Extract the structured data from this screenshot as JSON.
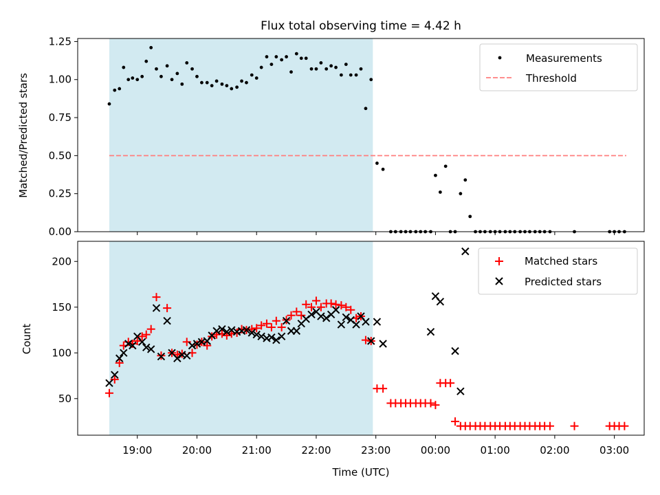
{
  "title": "Flux total observing time = 4.42 h",
  "shade_color": "#add8e6",
  "chart_data": [
    {
      "type": "scatter",
      "ylabel": "Matched/Predicted stars",
      "xlabel": "",
      "ylim": [
        0,
        1.27
      ],
      "yticks": [
        "0.00",
        "0.25",
        "0.50",
        "0.75",
        "1.00",
        "1.25"
      ],
      "ytick_values": [
        0,
        0.25,
        0.5,
        0.75,
        1.0,
        1.25
      ],
      "x_unit": "hours after 00:00 UTC of first day",
      "shaded_span": [
        18.53,
        22.95
      ],
      "legend_placement": "top-right",
      "legend": [
        {
          "label": "Measurements",
          "marker": "dot",
          "color": "#000000"
        },
        {
          "label": "Threshold",
          "marker": "dashed-line",
          "color": "#ff7f7f"
        }
      ],
      "threshold": {
        "value": 0.5,
        "x_range": [
          18.53,
          27.2
        ],
        "color": "#ff7f7f"
      },
      "series": [
        {
          "name": "Measurements",
          "color": "#000000",
          "x": [
            18.53,
            18.62,
            18.7,
            18.77,
            18.85,
            18.92,
            19.0,
            19.08,
            19.15,
            19.23,
            19.32,
            19.4,
            19.5,
            19.58,
            19.67,
            19.75,
            19.83,
            19.92,
            20.0,
            20.08,
            20.17,
            20.25,
            20.33,
            20.42,
            20.5,
            20.58,
            20.67,
            20.75,
            20.83,
            20.92,
            21.0,
            21.08,
            21.17,
            21.25,
            21.33,
            21.42,
            21.5,
            21.58,
            21.67,
            21.75,
            21.83,
            21.92,
            22.0,
            22.08,
            22.17,
            22.25,
            22.33,
            22.42,
            22.5,
            22.58,
            22.67,
            22.75,
            22.83,
            22.92,
            23.02,
            23.12,
            23.25,
            23.33,
            23.42,
            23.5,
            23.58,
            23.67,
            23.75,
            23.83,
            23.92,
            24.0,
            24.08,
            24.17,
            24.25,
            24.33,
            24.42,
            24.5,
            24.58,
            24.67,
            24.75,
            24.83,
            24.92,
            25.0,
            25.08,
            25.17,
            25.25,
            25.33,
            25.42,
            25.5,
            25.58,
            25.67,
            25.75,
            25.83,
            25.92,
            26.33,
            26.92,
            27.0,
            27.08,
            27.17
          ],
          "y": [
            0.84,
            0.93,
            0.94,
            1.08,
            1.0,
            1.01,
            1.0,
            1.02,
            1.12,
            1.21,
            1.07,
            1.02,
            1.09,
            1.0,
            1.04,
            0.97,
            1.11,
            1.07,
            1.02,
            0.98,
            0.98,
            0.96,
            0.99,
            0.97,
            0.96,
            0.94,
            0.95,
            0.99,
            0.98,
            1.03,
            1.01,
            1.08,
            1.15,
            1.1,
            1.15,
            1.13,
            1.15,
            1.05,
            1.17,
            1.14,
            1.14,
            1.07,
            1.07,
            1.11,
            1.07,
            1.09,
            1.08,
            1.03,
            1.1,
            1.03,
            1.03,
            1.07,
            0.81,
            1.0,
            0.45,
            0.41,
            0.0,
            0.0,
            0.0,
            0.0,
            0.0,
            0.0,
            0.0,
            0.0,
            0.0,
            0.37,
            0.26,
            0.43,
            0.0,
            0.0,
            0.25,
            0.34,
            0.1,
            0.0,
            0.0,
            0.0,
            0.0,
            0.0,
            0.0,
            0.0,
            0.0,
            0.0,
            0.0,
            0.0,
            0.0,
            0.0,
            0.0,
            0.0,
            0.0,
            0.0,
            0.0,
            0.0,
            0.0,
            0.0
          ]
        }
      ]
    },
    {
      "type": "scatter",
      "ylabel": "Count",
      "xlabel": "Time (UTC)",
      "ylim": [
        10,
        222
      ],
      "yticks": [
        "50",
        "100",
        "150",
        "200"
      ],
      "ytick_values": [
        50,
        100,
        150,
        200
      ],
      "xticks": [
        "19:00",
        "20:00",
        "21:00",
        "22:00",
        "23:00",
        "00:00",
        "01:00",
        "02:00",
        "03:00"
      ],
      "xtick_values": [
        19,
        20,
        21,
        22,
        23,
        24,
        25,
        26,
        27
      ],
      "x_unit": "hours after 00:00 UTC of first day",
      "xlim": [
        18.0,
        27.5
      ],
      "shaded_span": [
        18.53,
        22.95
      ],
      "legend_placement": "top-right",
      "legend": [
        {
          "label": "Matched stars",
          "marker": "plus",
          "color": "#ff0000"
        },
        {
          "label": "Predicted stars",
          "marker": "x",
          "color": "#000000"
        }
      ],
      "series": [
        {
          "name": "Matched stars",
          "color": "#ff0000",
          "x": [
            18.53,
            18.62,
            18.7,
            18.77,
            18.85,
            18.92,
            19.0,
            19.08,
            19.15,
            19.23,
            19.32,
            19.4,
            19.5,
            19.58,
            19.67,
            19.75,
            19.83,
            19.92,
            20.0,
            20.08,
            20.17,
            20.25,
            20.33,
            20.42,
            20.5,
            20.58,
            20.67,
            20.75,
            20.83,
            20.92,
            21.0,
            21.08,
            21.17,
            21.25,
            21.33,
            21.42,
            21.5,
            21.58,
            21.67,
            21.75,
            21.83,
            21.92,
            22.0,
            22.08,
            22.17,
            22.25,
            22.33,
            22.42,
            22.5,
            22.58,
            22.67,
            22.75,
            22.83,
            22.92,
            23.02,
            23.12,
            23.25,
            23.33,
            23.42,
            23.5,
            23.58,
            23.67,
            23.75,
            23.83,
            23.92,
            24.0,
            24.08,
            24.17,
            24.25,
            24.33,
            24.42,
            24.5,
            24.58,
            24.67,
            24.75,
            24.83,
            24.92,
            25.0,
            25.08,
            25.17,
            25.25,
            25.33,
            25.42,
            25.5,
            25.58,
            25.67,
            25.75,
            25.83,
            25.92,
            26.33,
            26.92,
            27.0,
            27.08,
            27.17
          ],
          "y": [
            56,
            71,
            89,
            108,
            112,
            110,
            113,
            118,
            120,
            126,
            161,
            97,
            149,
            100,
            98,
            99,
            112,
            100,
            109,
            112,
            108,
            118,
            120,
            121,
            119,
            121,
            122,
            126,
            125,
            126,
            127,
            130,
            132,
            128,
            135,
            128,
            136,
            141,
            145,
            141,
            153,
            150,
            157,
            150,
            154,
            154,
            153,
            152,
            150,
            147,
            138,
            140,
            114,
            113,
            61,
            61,
            45,
            45,
            45,
            45,
            45,
            45,
            45,
            45,
            45,
            43,
            67,
            67,
            67,
            25,
            20,
            20,
            20,
            20,
            20,
            20,
            20,
            20,
            20,
            20,
            20,
            20,
            20,
            20,
            20,
            20,
            20,
            20,
            20,
            20,
            20,
            20,
            20,
            20
          ]
        },
        {
          "name": "Predicted stars",
          "color": "#000000",
          "x": [
            18.53,
            18.62,
            18.7,
            18.77,
            18.85,
            18.92,
            19.0,
            19.08,
            19.15,
            19.23,
            19.32,
            19.4,
            19.5,
            19.58,
            19.67,
            19.75,
            19.83,
            19.92,
            20.0,
            20.08,
            20.17,
            20.25,
            20.33,
            20.42,
            20.5,
            20.58,
            20.67,
            20.75,
            20.83,
            20.92,
            21.0,
            21.08,
            21.17,
            21.25,
            21.33,
            21.42,
            21.5,
            21.58,
            21.67,
            21.75,
            21.83,
            21.92,
            22.0,
            22.08,
            22.17,
            22.25,
            22.33,
            22.42,
            22.5,
            22.58,
            22.67,
            22.75,
            22.83,
            22.92,
            23.02,
            23.12,
            23.92,
            24.0,
            24.08,
            24.33,
            24.42,
            24.5
          ],
          "y": [
            67,
            76,
            94,
            100,
            110,
            108,
            118,
            112,
            106,
            104,
            149,
            96,
            135,
            100,
            94,
            98,
            97,
            108,
            110,
            112,
            113,
            119,
            124,
            126,
            123,
            125,
            123,
            124,
            125,
            122,
            120,
            118,
            116,
            117,
            114,
            118,
            135,
            124,
            124,
            132,
            137,
            142,
            145,
            140,
            138,
            142,
            147,
            131,
            139,
            136,
            131,
            140,
            134,
            113,
            134,
            110,
            123,
            162,
            156,
            102,
            58,
            211
          ]
        }
      ]
    }
  ]
}
